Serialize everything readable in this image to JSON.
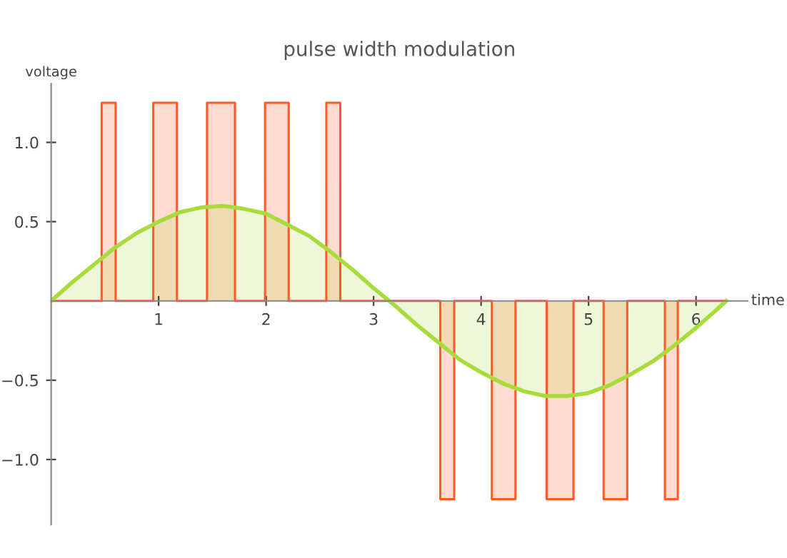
{
  "chart_data": {
    "type": "area",
    "title": "pulse width modulation",
    "xlabel": "time",
    "ylabel": "voltage",
    "xlim": [
      0,
      6.48
    ],
    "ylim": [
      -1.41,
      1.37
    ],
    "xticks": [
      1,
      2,
      3,
      4,
      5,
      6
    ],
    "yticks": [
      {
        "value": -1,
        "label": "−1.0"
      },
      {
        "value": -0.5,
        "label": "−0.5"
      },
      {
        "value": 0.5,
        "label": "0.5"
      },
      {
        "value": 1,
        "label": "1.0"
      }
    ],
    "grid": false,
    "legend": false,
    "series": [
      {
        "type": "step",
        "color": "#ff5a2a",
        "x": [
          0,
          0.47,
          0.6,
          0.95,
          1.17,
          1.45,
          1.71,
          1.99,
          2.21,
          2.56,
          2.69,
          3.62,
          3.75,
          4.1,
          4.32,
          4.61,
          4.86,
          5.14,
          5.36,
          5.71,
          5.83,
          6.28
        ],
        "values": [
          0,
          1.25,
          0,
          1.25,
          0,
          1.25,
          0,
          1.25,
          0,
          1.25,
          0,
          -1.25,
          0,
          -1.25,
          0,
          -1.25,
          0,
          -1.25,
          0,
          -1.25,
          0,
          0
        ]
      },
      {
        "color": "#a8dc3c",
        "x": [
          0,
          0.2,
          0.4,
          0.6,
          0.8,
          1.0,
          1.2,
          1.4,
          1.6,
          1.8,
          2.0,
          2.2,
          2.4,
          2.6,
          2.8,
          3.0,
          3.2,
          3.4,
          3.6,
          3.8,
          4.0,
          4.2,
          4.4,
          4.6,
          4.8,
          5.0,
          5.2,
          5.4,
          5.6,
          5.8,
          6.0,
          6.2,
          6.28
        ],
        "values": [
          0,
          0.12,
          0.23,
          0.34,
          0.43,
          0.5,
          0.56,
          0.59,
          0.6,
          0.58,
          0.55,
          0.48,
          0.41,
          0.31,
          0.2,
          0.08,
          -0.03,
          -0.15,
          -0.26,
          -0.37,
          -0.45,
          -0.52,
          -0.57,
          -0.6,
          -0.6,
          -0.58,
          -0.53,
          -0.46,
          -0.38,
          -0.28,
          -0.17,
          -0.05,
          0
        ]
      }
    ]
  }
}
